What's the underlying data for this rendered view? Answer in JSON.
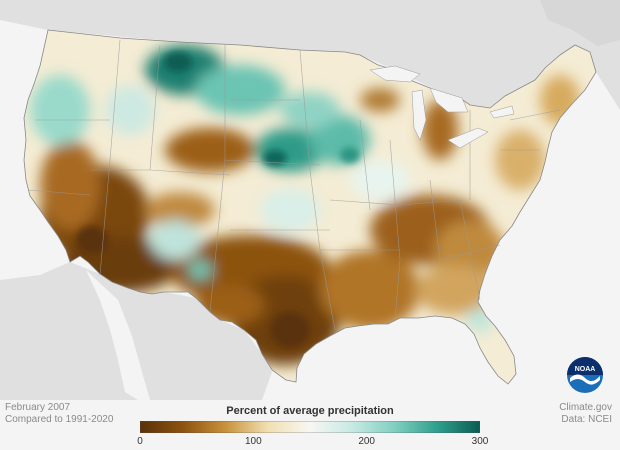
{
  "map": {
    "period": "February 2007",
    "baseline": "Compared to 1991-2020",
    "credit_site": "Climate.gov",
    "credit_data": "Data: NCEI",
    "logo_text": "NOAA"
  },
  "legend": {
    "title": "Percent of average precipitation",
    "ticks": [
      "0",
      "100",
      "200",
      "300"
    ],
    "range": [
      0,
      300
    ],
    "colors": [
      "#5a3108",
      "#8c520f",
      "#c8913a",
      "#f1dfb0",
      "#f7f7f3",
      "#c7e9e3",
      "#80cfc0",
      "#2f9e8d",
      "#0a5d52"
    ]
  }
}
